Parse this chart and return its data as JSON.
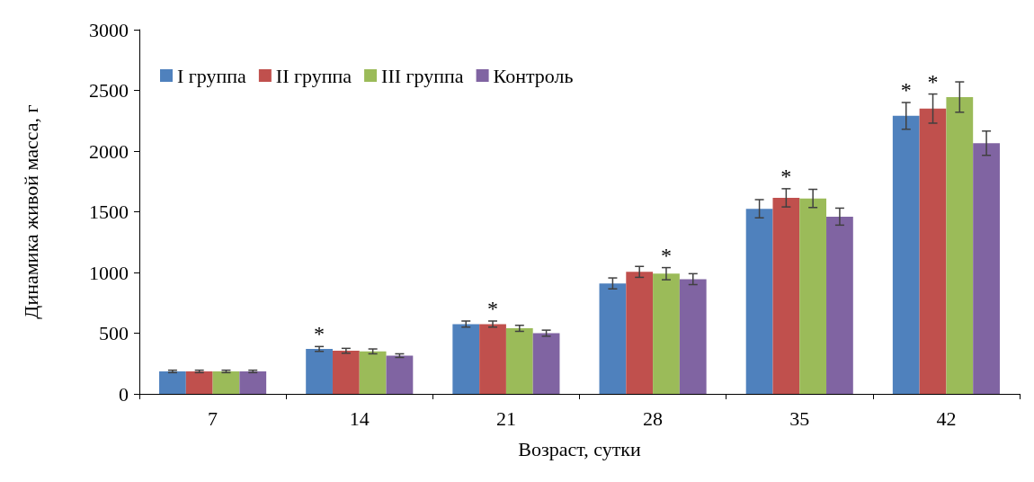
{
  "chart_data": {
    "type": "bar",
    "xlabel": "Возраст, сутки",
    "ylabel": "Динамика живой масса, г",
    "categories": [
      "7",
      "14",
      "21",
      "28",
      "35",
      "42"
    ],
    "series": [
      {
        "name": "I группа",
        "color": "#4f81bd",
        "values": [
          185,
          370,
          575,
          910,
          1525,
          2290
        ],
        "errors": [
          10,
          20,
          25,
          45,
          75,
          110
        ],
        "value_labels": [
          null,
          "*",
          null,
          null,
          null,
          "*"
        ]
      },
      {
        "name": "II группа",
        "color": "#c0504d",
        "values": [
          185,
          355,
          575,
          1005,
          1615,
          2350
        ],
        "errors": [
          10,
          20,
          25,
          45,
          75,
          120
        ],
        "value_labels": [
          null,
          null,
          "*",
          null,
          "*",
          "*"
        ]
      },
      {
        "name": "III группа",
        "color": "#9bbb59",
        "values": [
          185,
          350,
          540,
          990,
          1610,
          2445
        ],
        "errors": [
          10,
          20,
          25,
          50,
          75,
          125
        ],
        "value_labels": [
          null,
          null,
          null,
          "*",
          null,
          null
        ]
      },
      {
        "name": "Контроль",
        "color": "#8064a2",
        "values": [
          185,
          315,
          500,
          945,
          1460,
          2065
        ],
        "errors": [
          10,
          15,
          25,
          45,
          70,
          100
        ]
      }
    ],
    "ylim": [
      0,
      3000
    ],
    "yticks": [
      0,
      500,
      1000,
      1500,
      2000,
      2500,
      3000
    ],
    "grid": false,
    "legend": "top left"
  }
}
